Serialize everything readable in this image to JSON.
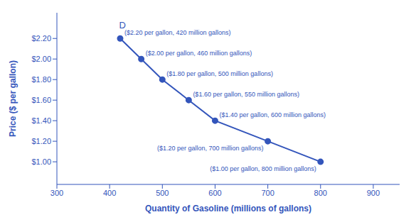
{
  "chart_data": {
    "type": "line",
    "x": [
      420,
      460,
      500,
      550,
      600,
      700,
      800
    ],
    "values": [
      2.2,
      2.0,
      1.8,
      1.6,
      1.4,
      1.2,
      1.0
    ],
    "color": "#3355bb",
    "marker": "circle",
    "x_label": "Quantity of Gasoline (millions of gallons)",
    "y_label": "Price ($ per gallon)",
    "xlim": [
      300,
      950
    ],
    "ylim": [
      0.78,
      2.45
    ],
    "xticks": [
      300,
      400,
      500,
      600,
      700,
      800,
      900
    ],
    "yticks": [
      {
        "value": 1.0,
        "label": "$1.00"
      },
      {
        "value": 1.2,
        "label": "$1.20"
      },
      {
        "value": 1.4,
        "label": "$1.40"
      },
      {
        "value": 1.6,
        "label": "$1.60"
      },
      {
        "value": 1.8,
        "label": "$1.80"
      },
      {
        "value": 2.0,
        "label": "$2.00"
      },
      {
        "value": 2.2,
        "label": "$2.20"
      }
    ],
    "grid": false,
    "annotations": [
      {
        "text": "($2.20 per gallon, 420 million gallons)",
        "x": 420,
        "y": 2.2
      },
      {
        "text": "($2.00 per gallon, 460 million gallons)",
        "x": 460,
        "y": 2.0
      },
      {
        "text": "($1.80 per gallon, 500 million gallons)",
        "x": 500,
        "y": 1.8
      },
      {
        "text": "($1.60 per gallon, 550 million gallons)",
        "x": 550,
        "y": 1.6
      },
      {
        "text": "($1.40 per gallon, 600 million gallons)",
        "x": 600,
        "y": 1.4
      },
      {
        "text": "($1.20 per gallon, 700 million gallons)",
        "x": 700,
        "y": 1.2
      },
      {
        "text": "($1.00 per gallon, 800 million gallons)",
        "x": 800,
        "y": 1.0
      },
      {
        "text": "D",
        "x": 418,
        "y": 2.3
      }
    ]
  }
}
